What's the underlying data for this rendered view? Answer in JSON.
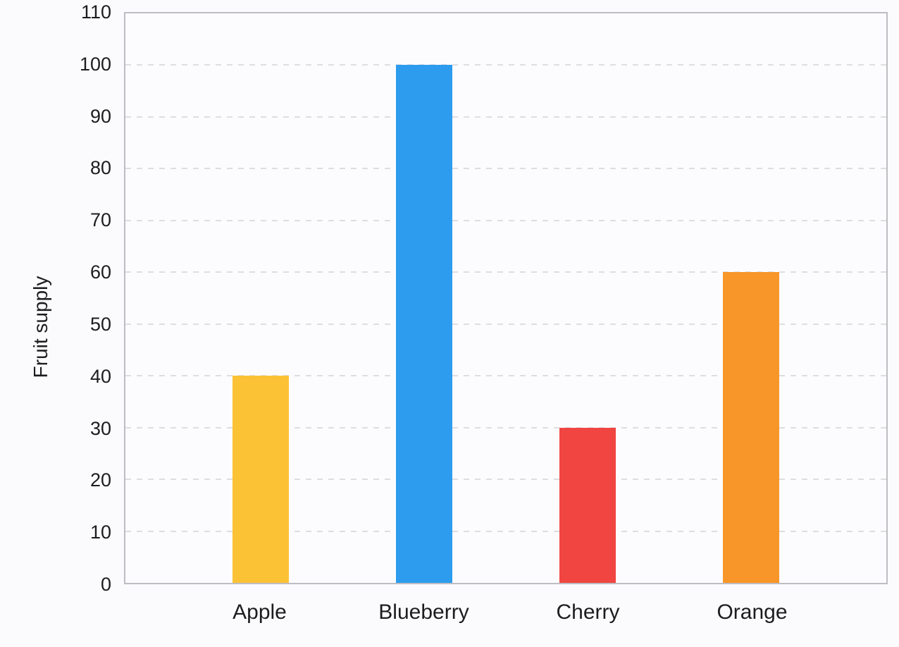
{
  "page": {
    "background_color": "#fbfbfe",
    "text_color": "#1d1d1f",
    "plot_border_color": "#bdbdc2",
    "gridline_color": "#dededf"
  },
  "chart_data": {
    "type": "bar",
    "title": "",
    "categories": [
      "Apple",
      "Blueberry",
      "Cherry",
      "Orange"
    ],
    "values": [
      40,
      100,
      30,
      60
    ],
    "bar_colors": [
      "#fcc236",
      "#2d9cee",
      "#f04541",
      "#f99629"
    ],
    "xlabel": "",
    "ylabel": "Fruit supply",
    "ylim": [
      0,
      110
    ],
    "ytick_step": 10,
    "yticks": [
      0,
      10,
      20,
      30,
      40,
      50,
      60,
      70,
      80,
      90,
      100,
      110
    ],
    "grid": "horizontal-dashed",
    "legend_position": "none"
  }
}
